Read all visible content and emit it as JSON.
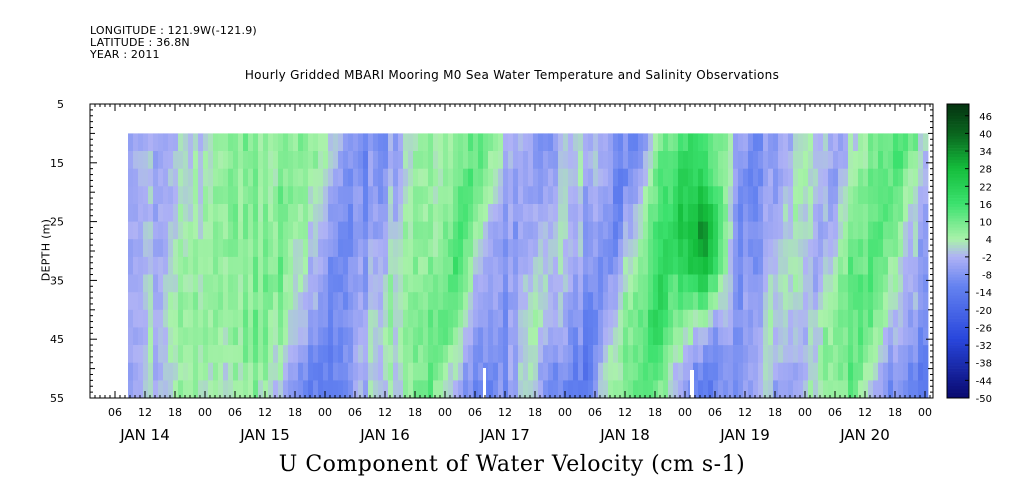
{
  "header": {
    "longitude": "LONGITUDE : 121.9W(-121.9)",
    "latitude": "LATITUDE : 36.8N",
    "year": "YEAR : 2011"
  },
  "chart_data": {
    "type": "heatmap",
    "title": "Hourly Gridded MBARI Mooring M0 Sea Water Temperature and Salinity Observations",
    "xlabel": "U Component of Water Velocity (cm s-1)",
    "ylabel": "DEPTH (m)",
    "ylim": [
      55,
      5
    ],
    "y_ticks": [
      "5",
      "15",
      "25",
      "35",
      "45",
      "55"
    ],
    "data_depth_range": [
      10,
      55
    ],
    "x_hour_ticks": [
      "06",
      "12",
      "18",
      "00",
      "06",
      "12",
      "18",
      "00",
      "06",
      "12",
      "18",
      "00",
      "06",
      "12",
      "18",
      "00",
      "06",
      "12",
      "18",
      "00",
      "06",
      "12",
      "18",
      "00",
      "06",
      "12",
      "18",
      "00"
    ],
    "x_day_labels": [
      "JAN 14",
      "JAN 15",
      "JAN 16",
      "JAN 17",
      "JAN 18",
      "JAN 19",
      "JAN 20"
    ],
    "colorbar_labels": [
      "46",
      "40",
      "34",
      "28",
      "22",
      "16",
      "10",
      "4",
      "-2",
      "-8",
      "-14",
      "-20",
      "-26",
      "-32",
      "-38",
      "-44",
      "-50"
    ],
    "colorbar_range": [
      -50,
      50
    ],
    "colors": {
      "strong_negative": "#0a1a8c",
      "negative": "#4a6fe0",
      "weak_negative": "#a9acf2",
      "weak_positive": "#a6f0a6",
      "positive": "#22dd55",
      "strong_positive": "#063d13"
    },
    "bands_by_6h": [
      -3,
      -2,
      4,
      8,
      6,
      10,
      2,
      -10,
      -6,
      4,
      6,
      14,
      -4,
      -8,
      2,
      -4,
      -12,
      8,
      18,
      4,
      -10,
      -6,
      2,
      -4,
      10,
      14,
      -2,
      -8,
      -16,
      -6,
      6,
      20,
      6,
      -10,
      14,
      12,
      4,
      -8,
      -4,
      4,
      18,
      24,
      -2,
      -22,
      12,
      18,
      6,
      -6,
      -6,
      10,
      12,
      8,
      -10,
      -4,
      8,
      16,
      14,
      4,
      2,
      -4
    ],
    "marks": {
      "peak": {
        "day_offset": 4.85,
        "depth": 29,
        "value": 34
      }
    }
  }
}
